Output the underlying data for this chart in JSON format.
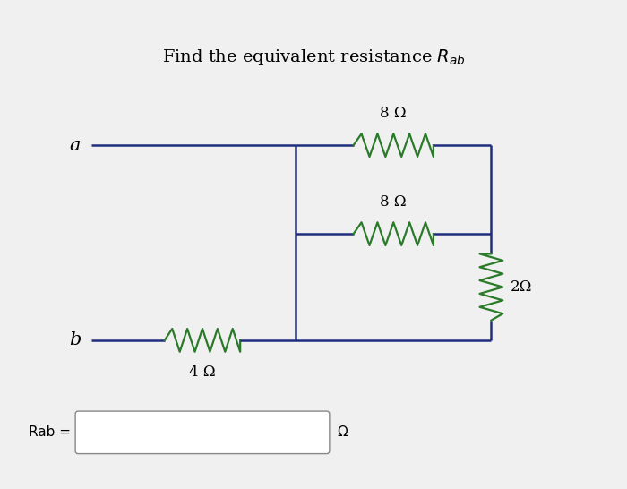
{
  "title_plain": "Find the equivalent resistance ",
  "title_math": "$R_{ab}$",
  "background_color": "#f0f0f0",
  "wire_color": "#1e2d7d",
  "resistor_color": "#2a7a2a",
  "text_color": "#000000",
  "node_a_label": "a",
  "node_b_label": "b",
  "answer_label": "Rab =",
  "omega_symbol": "Ω",
  "label_8ohm_top": "8 Ω",
  "label_8ohm_mid": "8 Ω",
  "label_2ohm": "2Ω",
  "label_4ohm": "4 Ω"
}
